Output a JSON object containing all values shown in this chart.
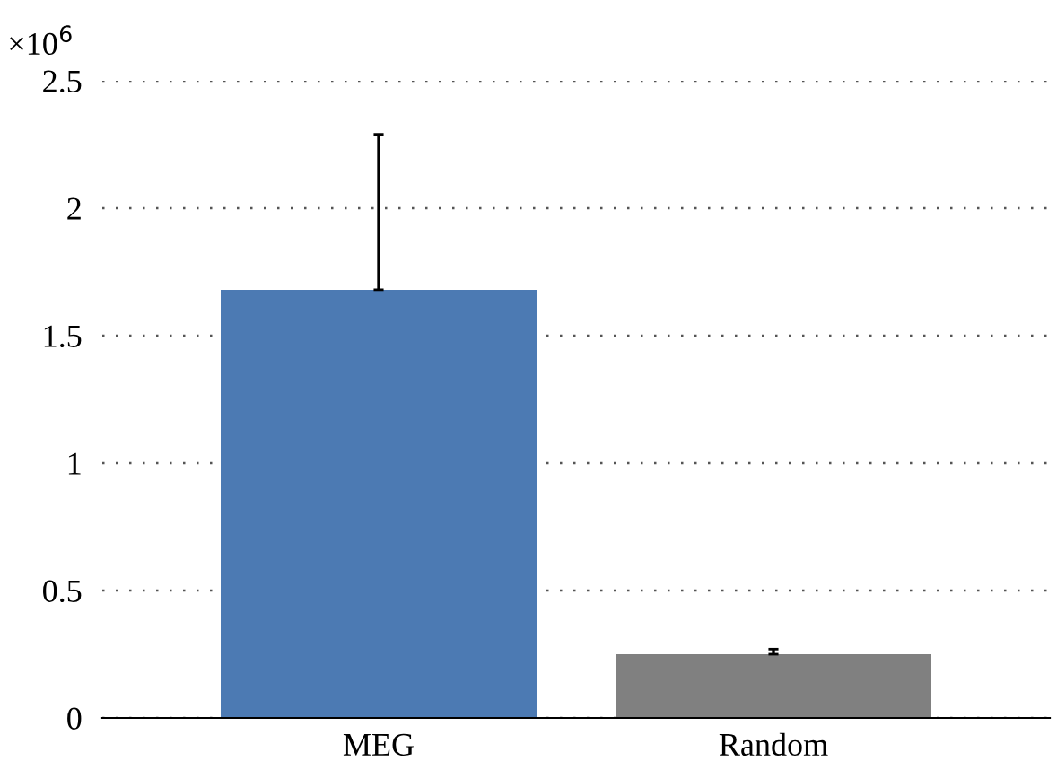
{
  "chart_data": {
    "type": "bar",
    "categories": [
      "MEG",
      "Random"
    ],
    "values": [
      1.68,
      0.25
    ],
    "errors": [
      [
        1.68,
        2.29
      ],
      [
        0.25,
        0.27
      ]
    ],
    "colors": [
      "#4c7ab3",
      "#808080"
    ],
    "ylim": [
      0,
      2.5
    ],
    "yticks": [
      0,
      0.5,
      1,
      1.5,
      2,
      2.5
    ],
    "grid": "y",
    "legend": false,
    "annotations": [
      "×10$^{6}$"
    ]
  }
}
